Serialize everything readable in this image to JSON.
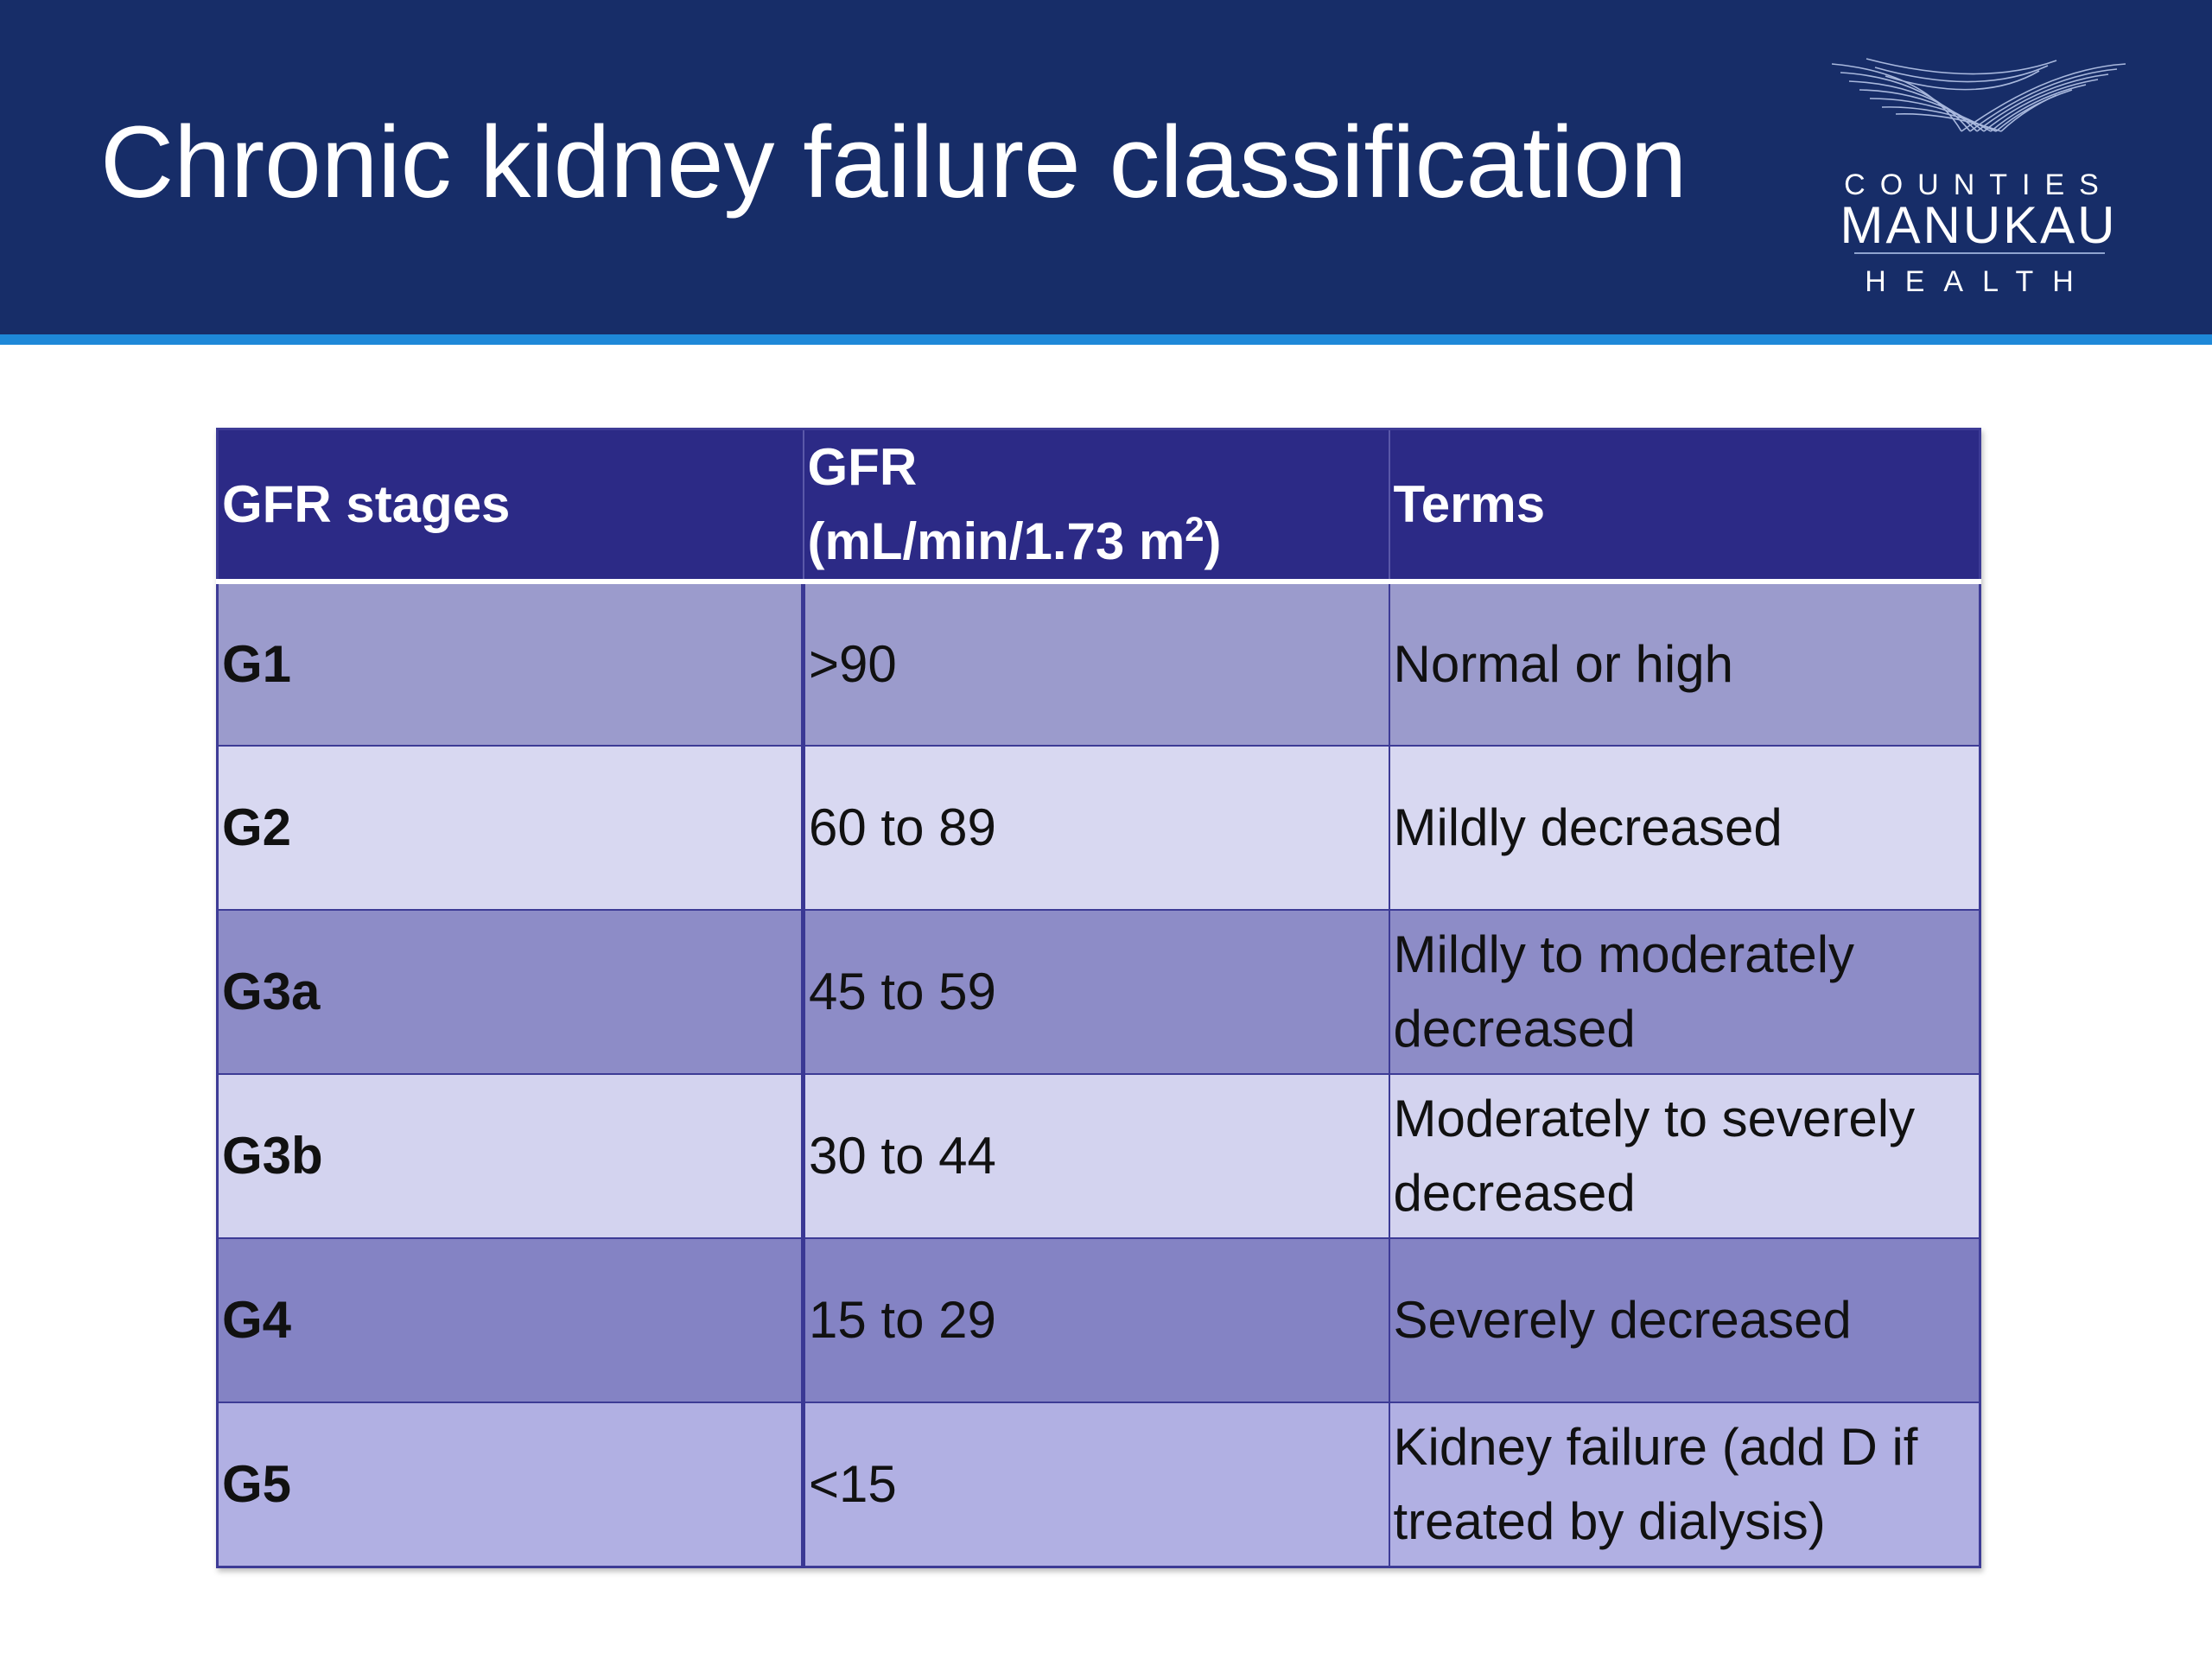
{
  "slide": {
    "title": "Chronic kidney failure classification"
  },
  "logo": {
    "line1": "COUNTIES",
    "line2": "MANUKAU",
    "line3": "HEALTH",
    "icon": "wing-mesh-logo-icon"
  },
  "table": {
    "headers": {
      "stage": "GFR stages",
      "gfr_line1": "GFR",
      "gfr_line2_prefix": "(mL/min/1.73 m",
      "gfr_line2_sup": "2",
      "gfr_line2_suffix": ")",
      "terms": "Terms"
    },
    "rows": [
      {
        "stage": "G1",
        "gfr": ">90",
        "term": "Normal or high"
      },
      {
        "stage": "G2",
        "gfr": "60 to 89",
        "term": "Mildly decreased"
      },
      {
        "stage": "G3a",
        "gfr": "45 to 59",
        "term": "Mildly to moderately decreased"
      },
      {
        "stage": "G3b",
        "gfr": "30 to 44",
        "term": "Moderately to severely decreased"
      },
      {
        "stage": "G4",
        "gfr": "15 to 29",
        "term": "Severely decreased"
      },
      {
        "stage": "G5",
        "gfr": "<15",
        "term": "Kidney failure (add D if treated by dialysis)"
      }
    ]
  },
  "colors": {
    "header_bg": "#172d68",
    "header_rule": "#1e88d8",
    "table_header_bg": "#2c2a86"
  }
}
